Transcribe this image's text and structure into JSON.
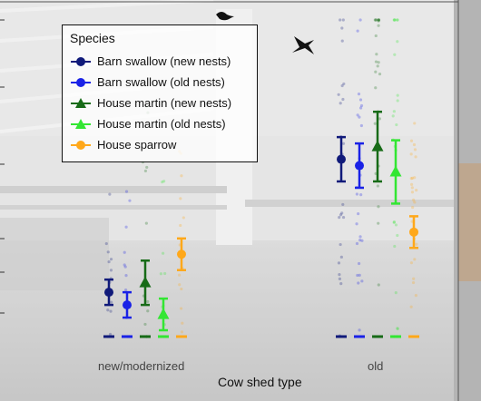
{
  "chart_data": {
    "type": "scatter",
    "title": "",
    "xlabel": "Cow shed type",
    "ylabel": "",
    "categories": [
      "new/modernized",
      "old"
    ],
    "ylim": [
      0,
      1
    ],
    "grid": false,
    "legend": {
      "title": "Species",
      "placement": "top-left"
    },
    "series": [
      {
        "name": "Barn swallow (new nests)",
        "color": "#101a7a",
        "marker": "circle",
        "mean": [
          0.14,
          0.56
        ],
        "lower": [
          0.1,
          0.49
        ],
        "upper": [
          0.18,
          0.63
        ]
      },
      {
        "name": "Barn swallow (old nests)",
        "color": "#1a22e6",
        "marker": "circle",
        "mean": [
          0.1,
          0.54
        ],
        "lower": [
          0.06,
          0.47
        ],
        "upper": [
          0.14,
          0.61
        ]
      },
      {
        "name": "House martin (new nests)",
        "color": "#176b17",
        "marker": "triangle",
        "mean": [
          0.17,
          0.6
        ],
        "lower": [
          0.1,
          0.49
        ],
        "upper": [
          0.24,
          0.71
        ]
      },
      {
        "name": "House martin (old nests)",
        "color": "#33e633",
        "marker": "triangle",
        "mean": [
          0.07,
          0.52
        ],
        "lower": [
          0.02,
          0.42
        ],
        "upper": [
          0.12,
          0.62
        ]
      },
      {
        "name": "House sparrow",
        "color": "#ffa81a",
        "marker": "circle",
        "mean": [
          0.26,
          0.33
        ],
        "lower": [
          0.21,
          0.28
        ],
        "upper": [
          0.31,
          0.38
        ]
      }
    ],
    "annotations": []
  }
}
